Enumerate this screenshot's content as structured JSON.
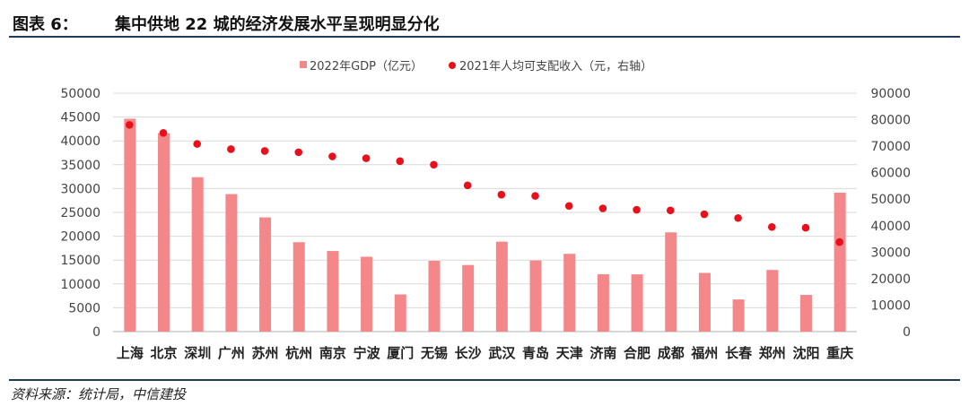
{
  "header": {
    "label": "图表 6：",
    "title": "集中供地 22 城的经济发展水平呈现明显分化"
  },
  "footer": {
    "source": "资料来源：统计局，中信建投"
  },
  "chart_data": {
    "type": "bar",
    "categories": [
      "上海",
      "北京",
      "深圳",
      "广州",
      "苏州",
      "杭州",
      "南京",
      "宁波",
      "厦门",
      "无锡",
      "长沙",
      "武汉",
      "青岛",
      "天津",
      "济南",
      "合肥",
      "成都",
      "福州",
      "长春",
      "郑州",
      "沈阳",
      "重庆"
    ],
    "series": [
      {
        "name": "2022年GDP（亿元）",
        "type": "bar",
        "axis": "left",
        "color": "#f4878a",
        "values": [
          44653,
          41611,
          32388,
          28839,
          23958,
          18753,
          16907,
          15704,
          7803,
          14851,
          13966,
          18866,
          14921,
          16311,
          12028,
          12013,
          20817,
          12308,
          6745,
          12934,
          7696,
          29129
        ]
      },
      {
        "name": "2021年人均可支配收入（元，右轴）",
        "type": "scatter",
        "axis": "right",
        "color": "#e8101b",
        "values": [
          78027,
          75002,
          70847,
          68868,
          68191,
          67709,
          66140,
          65436,
          64362,
          63014,
          55211,
          51706,
          51223,
          47449,
          46523,
          45996,
          45755,
          44315,
          42887,
          39497,
          39212,
          33803
        ]
      }
    ],
    "yleft_ticks": [
      "0",
      "5000",
      "10000",
      "15000",
      "20000",
      "25000",
      "30000",
      "35000",
      "40000",
      "45000",
      "50000"
    ],
    "yright_ticks": [
      "0",
      "10000",
      "20000",
      "30000",
      "40000",
      "50000",
      "60000",
      "70000",
      "80000",
      "90000"
    ],
    "yleft_lim": [
      0,
      50000
    ],
    "yright_lim": [
      0,
      90000
    ],
    "legend": [
      "2022年GDP（亿元）",
      "2021年人均可支配收入（元，右轴）"
    ],
    "legend_position": "top"
  }
}
